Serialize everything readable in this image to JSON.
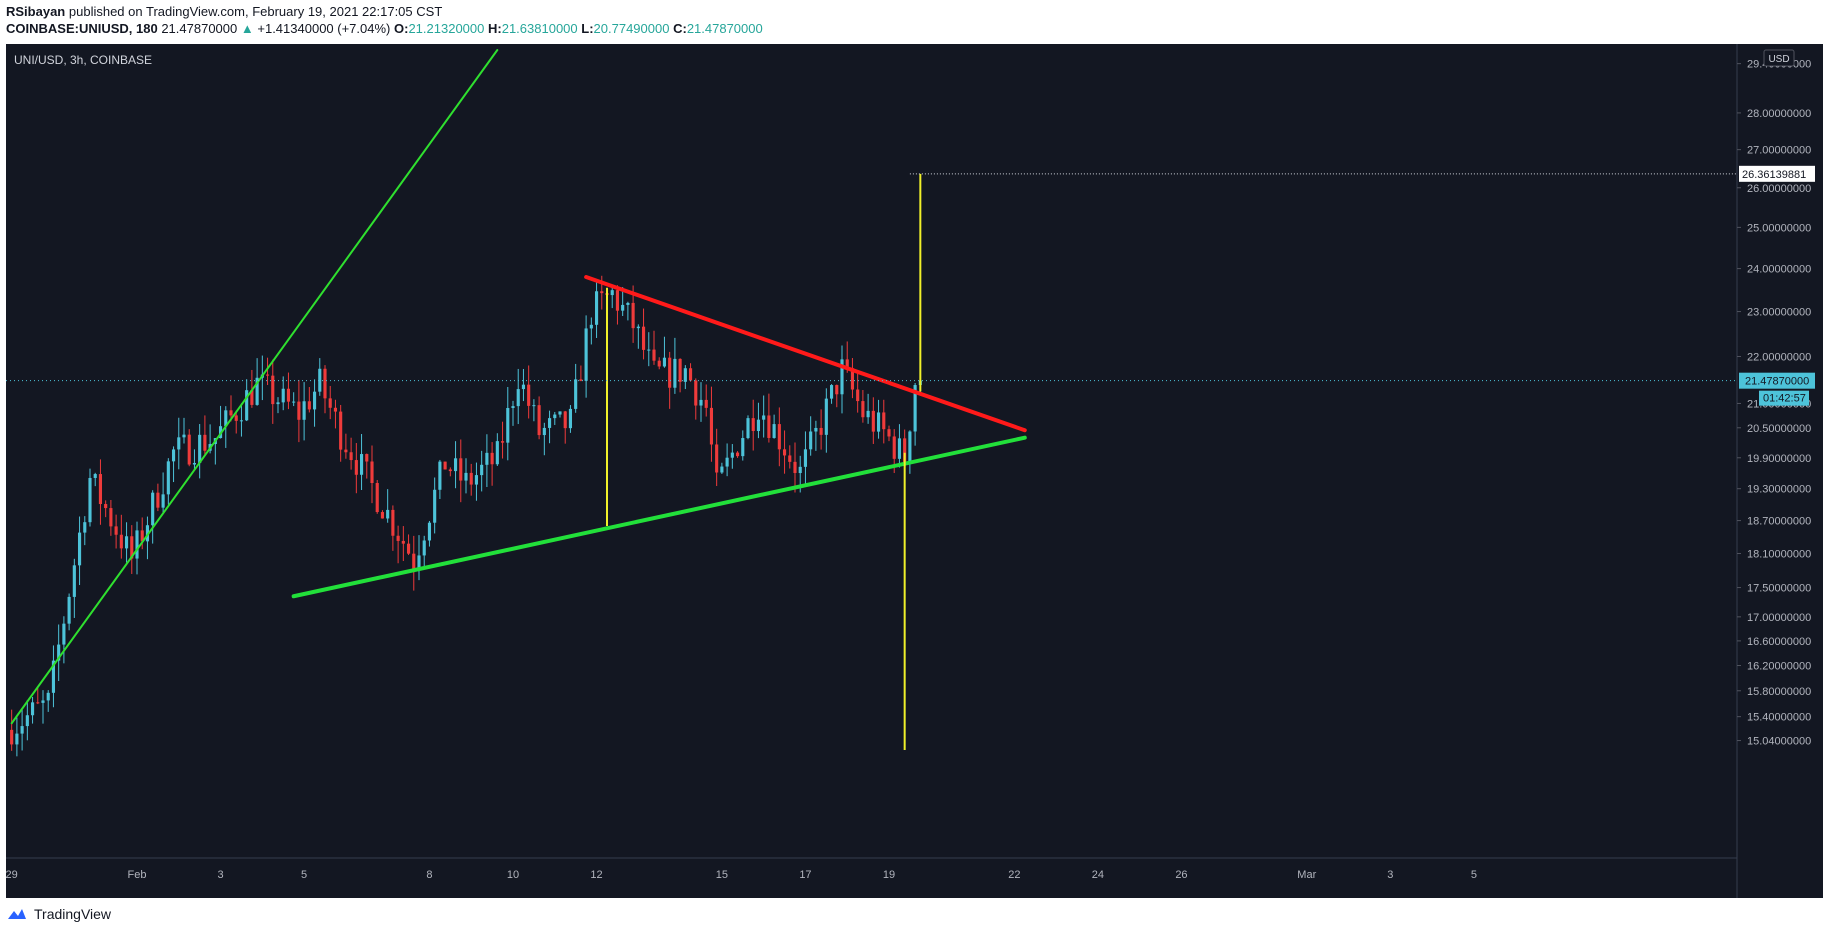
{
  "header": {
    "author": "RSibayan",
    "published_text": "published on TradingView.com, February 19, 2021 22:17:05 CST",
    "symbol_line": "COINBASE:UNIUSD, 180",
    "last_price": "21.47870000",
    "arrow": "▲",
    "change": "+1.41340000 (+7.04%)",
    "o_label": "O:",
    "o_value": "21.21320000",
    "h_label": "H:",
    "h_value": "21.63810000",
    "l_label": "L:",
    "l_value": "20.77490000",
    "c_label": "C:",
    "c_value": "21.47870000"
  },
  "chart_title": "UNI/USD, 3h, COINBASE",
  "currency_badge": "USD",
  "footer": {
    "logo_text": "TradingView"
  },
  "colors": {
    "background": "#131722",
    "up": "#4dc3d9",
    "down": "#ef3b3b",
    "resistance_line": "#ff1a1a",
    "support_line": "#22e03a",
    "trend_line": "#2fe02f",
    "measure_line": "#f0f02a",
    "price_label_bg": "#4dc3d9"
  },
  "chart_data": {
    "type": "candlestick",
    "title": "UNI/USD, 3h, COINBASE",
    "interval": "3h",
    "x_tick_labels": [
      "29",
      "Feb",
      "3",
      "5",
      "8",
      "10",
      "12",
      "15",
      "17",
      "19",
      "22",
      "24",
      "26",
      "Mar",
      "3",
      "5"
    ],
    "y_tick_labels": [
      "29.40000000",
      "28.00000000",
      "27.00000000",
      "26.00000000",
      "25.00000000",
      "24.00000000",
      "23.00000000",
      "22.00000000",
      "21.00000000",
      "20.50000000",
      "19.90000000",
      "19.30000000",
      "18.70000000",
      "18.10000000",
      "17.50000000",
      "17.00000000",
      "16.60000000",
      "16.20000000",
      "15.80000000",
      "15.40000000",
      "15.04000000"
    ],
    "y_scale": "log",
    "ylim": [
      14.9,
      29.8
    ],
    "last_price": 21.4787,
    "last_price_label": "21.47870000",
    "countdown_label": "01:42:57",
    "target_price": 26.36139881,
    "target_price_label": "26.36139881",
    "time_anchors": [
      {
        "date": "2021-01-29T00:00",
        "tick": "29"
      },
      {
        "date": "2021-02-01T00:00",
        "tick": "Feb"
      },
      {
        "date": "2021-02-19T00:00",
        "tick": "19"
      }
    ],
    "price_path": [
      [
        "2021-01-29T00:00",
        15.2
      ],
      [
        "2021-01-30T00:00",
        15.6
      ],
      [
        "2021-01-31T00:00",
        19.5
      ],
      [
        "2021-02-01T00:00",
        18.0
      ],
      [
        "2021-02-02T00:00",
        20.0
      ],
      [
        "2021-02-03T00:00",
        20.3
      ],
      [
        "2021-02-04T00:00",
        21.4
      ],
      [
        "2021-02-05T00:00",
        20.8
      ],
      [
        "2021-02-05T12:00",
        21.4
      ],
      [
        "2021-02-06T00:00",
        20.4
      ],
      [
        "2021-02-07T00:00",
        19.0
      ],
      [
        "2021-02-07T18:00",
        18.0
      ],
      [
        "2021-02-08T12:00",
        19.8
      ],
      [
        "2021-02-09T00:00",
        19.4
      ],
      [
        "2021-02-09T18:00",
        19.9
      ],
      [
        "2021-02-10T06:00",
        21.6
      ],
      [
        "2021-02-10T18:00",
        20.4
      ],
      [
        "2021-02-11T12:00",
        20.6
      ],
      [
        "2021-02-12T00:00",
        23.0
      ],
      [
        "2021-02-12T12:00",
        23.4
      ],
      [
        "2021-02-13T00:00",
        22.7
      ],
      [
        "2021-02-13T12:00",
        21.6
      ],
      [
        "2021-02-14T06:00",
        21.7
      ],
      [
        "2021-02-14T18:00",
        20.9
      ],
      [
        "2021-02-15T00:00",
        19.3
      ],
      [
        "2021-02-15T12:00",
        20.2
      ],
      [
        "2021-02-16T00:00",
        21.0
      ],
      [
        "2021-02-16T12:00",
        20.3
      ],
      [
        "2021-02-17T00:00",
        19.6
      ],
      [
        "2021-02-17T12:00",
        20.6
      ],
      [
        "2021-02-18T00:00",
        21.7
      ],
      [
        "2021-02-18T12:00",
        20.8
      ],
      [
        "2021-02-19T00:00",
        20.4
      ],
      [
        "2021-02-19T12:00",
        19.9
      ],
      [
        "2021-02-19T18:00",
        21.48
      ]
    ],
    "drawings": [
      {
        "type": "trendline",
        "name": "ascending-trendline",
        "color": "#2fe02f",
        "width": 2,
        "from": [
          "2021-01-29T00:00",
          15.3
        ],
        "to": [
          "2021-02-09T15:00",
          29.8
        ]
      },
      {
        "type": "trendline",
        "name": "support-line",
        "color": "#22e03a",
        "width": 4,
        "from": [
          "2021-02-04T18:00",
          17.35
        ],
        "to": [
          "2021-02-22T06:00",
          20.3
        ]
      },
      {
        "type": "trendline",
        "name": "resistance-line",
        "color": "#ff1a1a",
        "width": 4,
        "from": [
          "2021-02-11T18:00",
          23.8
        ],
        "to": [
          "2021-02-22T06:00",
          20.45
        ]
      },
      {
        "type": "vertical",
        "name": "measure-line-height",
        "color": "#f0f02a",
        "at": "2021-02-12T06:00",
        "from_price": 23.55,
        "to_price": 18.6
      },
      {
        "type": "vertical",
        "name": "measure-line-projection",
        "color": "#f0f02a",
        "at": "2021-02-19T18:00",
        "from_price": 21.25,
        "to_price": 26.36
      },
      {
        "type": "vertical",
        "name": "breakout-marker",
        "color": "#f0f02a",
        "at": "2021-02-19T09:00",
        "from_price": 20.0,
        "to_price": 14.9
      }
    ]
  }
}
